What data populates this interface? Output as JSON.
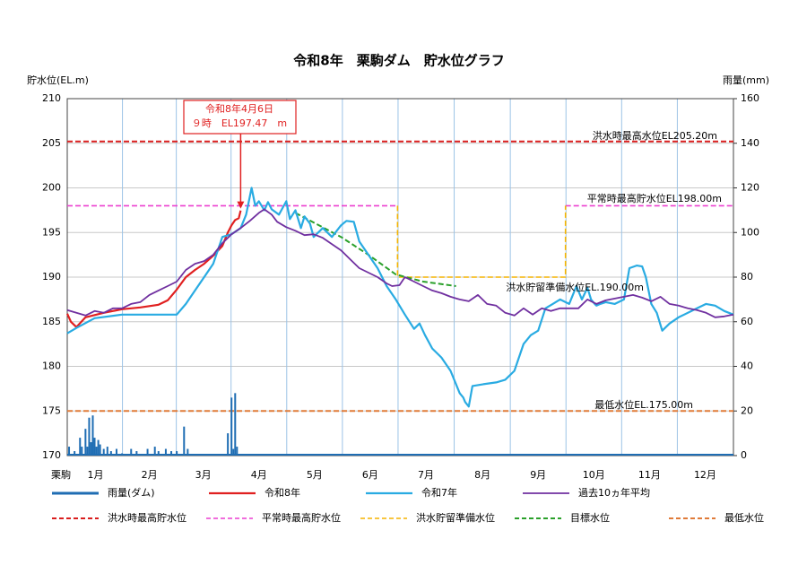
{
  "chart_data": {
    "type": "line",
    "title": "令和8年　栗駒ダム　貯水位グラフ",
    "y_label": "貯水位(EL.m)",
    "y2_label": "雨量(mm)",
    "x_label": "栗駒",
    "xlim": [
      0,
      365
    ],
    "xticks": [
      {
        "value": 15.5,
        "label": "1月"
      },
      {
        "value": 45,
        "label": "2月"
      },
      {
        "value": 74.5,
        "label": "3月"
      },
      {
        "value": 105,
        "label": "4月"
      },
      {
        "value": 135.5,
        "label": "5月"
      },
      {
        "value": 166,
        "label": "6月"
      },
      {
        "value": 196.5,
        "label": "7月"
      },
      {
        "value": 227.5,
        "label": "8月"
      },
      {
        "value": 258,
        "label": "9月"
      },
      {
        "value": 288.5,
        "label": "10月"
      },
      {
        "value": 319,
        "label": "11月"
      },
      {
        "value": 349.5,
        "label": "12月"
      }
    ],
    "ylim": [
      170,
      210
    ],
    "yticks": [
      170,
      175,
      180,
      185,
      190,
      195,
      200,
      205,
      210
    ],
    "y2lim": [
      0,
      160
    ],
    "y2ticks": [
      0,
      20,
      40,
      60,
      80,
      100,
      120,
      140,
      160
    ],
    "grid": true,
    "series": [
      {
        "name": "雨量(ダム)",
        "type": "bar",
        "axis": "y2",
        "color": "#1f6db3",
        "x": [
          1,
          4,
          7,
          8,
          10,
          11,
          12,
          13,
          14,
          15,
          16,
          17,
          18,
          20,
          22,
          24,
          27,
          30,
          35,
          38,
          44,
          48,
          50,
          54,
          57,
          60,
          64,
          66,
          88,
          90,
          91,
          92,
          93
        ],
        "values": [
          4,
          2,
          8,
          4,
          12,
          4,
          17,
          6,
          18,
          8,
          4,
          7,
          5,
          3,
          4,
          2,
          3,
          1,
          3,
          2,
          3,
          4,
          2,
          3,
          2,
          2,
          13,
          3,
          10,
          26,
          3,
          28,
          4
        ]
      },
      {
        "name": "令和8年",
        "color": "#e02020",
        "width": 2.2,
        "x": [
          0,
          2,
          5,
          10,
          20,
          30,
          40,
          50,
          55,
          60,
          65,
          70,
          75,
          80,
          85,
          88,
          90,
          92,
          94,
          95
        ],
        "values": [
          185.9,
          185.0,
          184.4,
          185.5,
          186.0,
          186.4,
          186.6,
          186.9,
          187.4,
          188.6,
          190.0,
          190.8,
          191.5,
          192.4,
          193.5,
          195.0,
          195.8,
          196.4,
          196.6,
          197.47
        ]
      },
      {
        "name": "令和7年",
        "color": "#29abe2",
        "width": 2.2,
        "x": [
          0,
          5,
          15,
          30,
          45,
          60,
          65,
          70,
          75,
          80,
          85,
          90,
          95,
          98,
          101,
          103,
          105,
          108,
          110,
          112,
          116,
          120,
          122,
          125,
          128,
          130,
          133,
          135,
          140,
          145,
          150,
          153,
          157,
          160,
          165,
          170,
          175,
          180,
          185,
          190,
          193,
          196,
          200,
          205,
          210,
          213,
          215,
          217,
          218,
          220,
          222,
          228,
          235,
          240,
          245,
          250,
          254,
          258,
          262,
          266,
          270,
          275,
          279,
          282,
          285,
          287,
          289,
          290,
          292,
          295,
          300,
          305,
          308,
          312,
          315,
          317,
          320,
          323,
          326,
          330,
          335,
          345,
          350,
          355,
          360,
          365
        ],
        "values": [
          183.7,
          184.3,
          185.4,
          185.8,
          185.8,
          185.8,
          187.0,
          188.5,
          190,
          191.5,
          194.5,
          194.8,
          195.5,
          197,
          200,
          198,
          198.5,
          197.5,
          198.4,
          197.6,
          197,
          198.5,
          196.5,
          197.5,
          195.5,
          196.8,
          196,
          194.5,
          195.5,
          194.5,
          195.8,
          196.3,
          196.2,
          194,
          192.5,
          191,
          189,
          187.5,
          185.8,
          184.2,
          184.8,
          183.5,
          182,
          181,
          179.5,
          178,
          177,
          176.5,
          176,
          175.5,
          177.8,
          178,
          178.2,
          178.5,
          179.5,
          182.5,
          183.5,
          184,
          186.5,
          187,
          187.5,
          187,
          189,
          187.5,
          188.8,
          187.5,
          187,
          186.8,
          187,
          187.2,
          187,
          187.5,
          191,
          191.3,
          191.2,
          190,
          187,
          186,
          184,
          184.8,
          185.5,
          186.5,
          187,
          186.8,
          186.2,
          185.8
        ]
      },
      {
        "name": "過去10ヵ年平均",
        "color": "#7030a0",
        "width": 1.8,
        "x": [
          0,
          5,
          10,
          15,
          20,
          25,
          30,
          35,
          40,
          45,
          50,
          55,
          60,
          65,
          70,
          75,
          80,
          85,
          90,
          95,
          100,
          105,
          108,
          112,
          115,
          120,
          125,
          130,
          135,
          140,
          145,
          150,
          155,
          160,
          165,
          170,
          175,
          178,
          182,
          185,
          190,
          195,
          200,
          205,
          210,
          215,
          220,
          225,
          230,
          235,
          240,
          245,
          250,
          255,
          260,
          265,
          270,
          275,
          280,
          285,
          290,
          295,
          300,
          305,
          310,
          315,
          320,
          325,
          330,
          335,
          340,
          345,
          350,
          355,
          360,
          365
        ],
        "values": [
          186.3,
          186,
          185.7,
          186.2,
          186,
          186.5,
          186.5,
          187,
          187.2,
          188,
          188.5,
          189,
          189.5,
          190.8,
          191.5,
          191.8,
          192.5,
          193.8,
          194.8,
          195.5,
          196.3,
          197.2,
          197.6,
          197,
          196.2,
          195.6,
          195.2,
          194.7,
          194.8,
          194.4,
          193.7,
          193,
          192,
          191,
          190.5,
          190,
          189.3,
          189.0,
          189.1,
          190,
          189.5,
          189,
          188.5,
          188.2,
          187.8,
          187.5,
          187.3,
          188,
          187,
          186.8,
          186,
          185.7,
          186.5,
          185.8,
          186.5,
          186.2,
          186.5,
          186.5,
          186.5,
          187.5,
          187,
          187.4,
          187.6,
          187.8,
          188,
          187.7,
          187.3,
          187.8,
          187,
          186.8,
          186.5,
          186.3,
          186,
          185.5,
          185.6,
          185.8
        ]
      },
      {
        "name": "洪水時最高貯水位",
        "color": "#d91e1e",
        "dash": true,
        "width": 2,
        "x": [
          0,
          365
        ],
        "values": [
          205.2,
          205.2
        ]
      },
      {
        "name": "平常時最高貯水位",
        "color": "#ec3fd0",
        "dash": true,
        "width": 1.6,
        "x": [
          0,
          181,
          227,
          273,
          365
        ],
        "values": [
          198,
          198,
          null,
          198,
          198
        ]
      },
      {
        "name": "洪水貯留準備水位",
        "color": "#f5b400",
        "dash": true,
        "width": 1.6,
        "x": [
          181,
          181,
          273,
          273
        ],
        "values": [
          198,
          190,
          190,
          198
        ]
      },
      {
        "name": "目標水位",
        "color": "#2aa02a",
        "dash": true,
        "width": 2,
        "x": [
          125,
          150,
          165,
          180,
          195,
          213
        ],
        "values": [
          197.2,
          194.5,
          192.5,
          190.3,
          189.5,
          189.0
        ]
      },
      {
        "name": "最低水位",
        "color": "#e07b39",
        "dash": true,
        "width": 2,
        "x": [
          0,
          365
        ],
        "values": [
          175,
          175
        ]
      }
    ],
    "annotations": [
      "洪水時最高水位EL205.20m",
      "平常時最高貯水位EL198.00m",
      "洪水貯留準備水位EL.190.00m",
      "最低水位EL.175.00m"
    ],
    "callout": [
      "令和8年4月6日",
      "９時　EL197.47　m"
    ]
  }
}
